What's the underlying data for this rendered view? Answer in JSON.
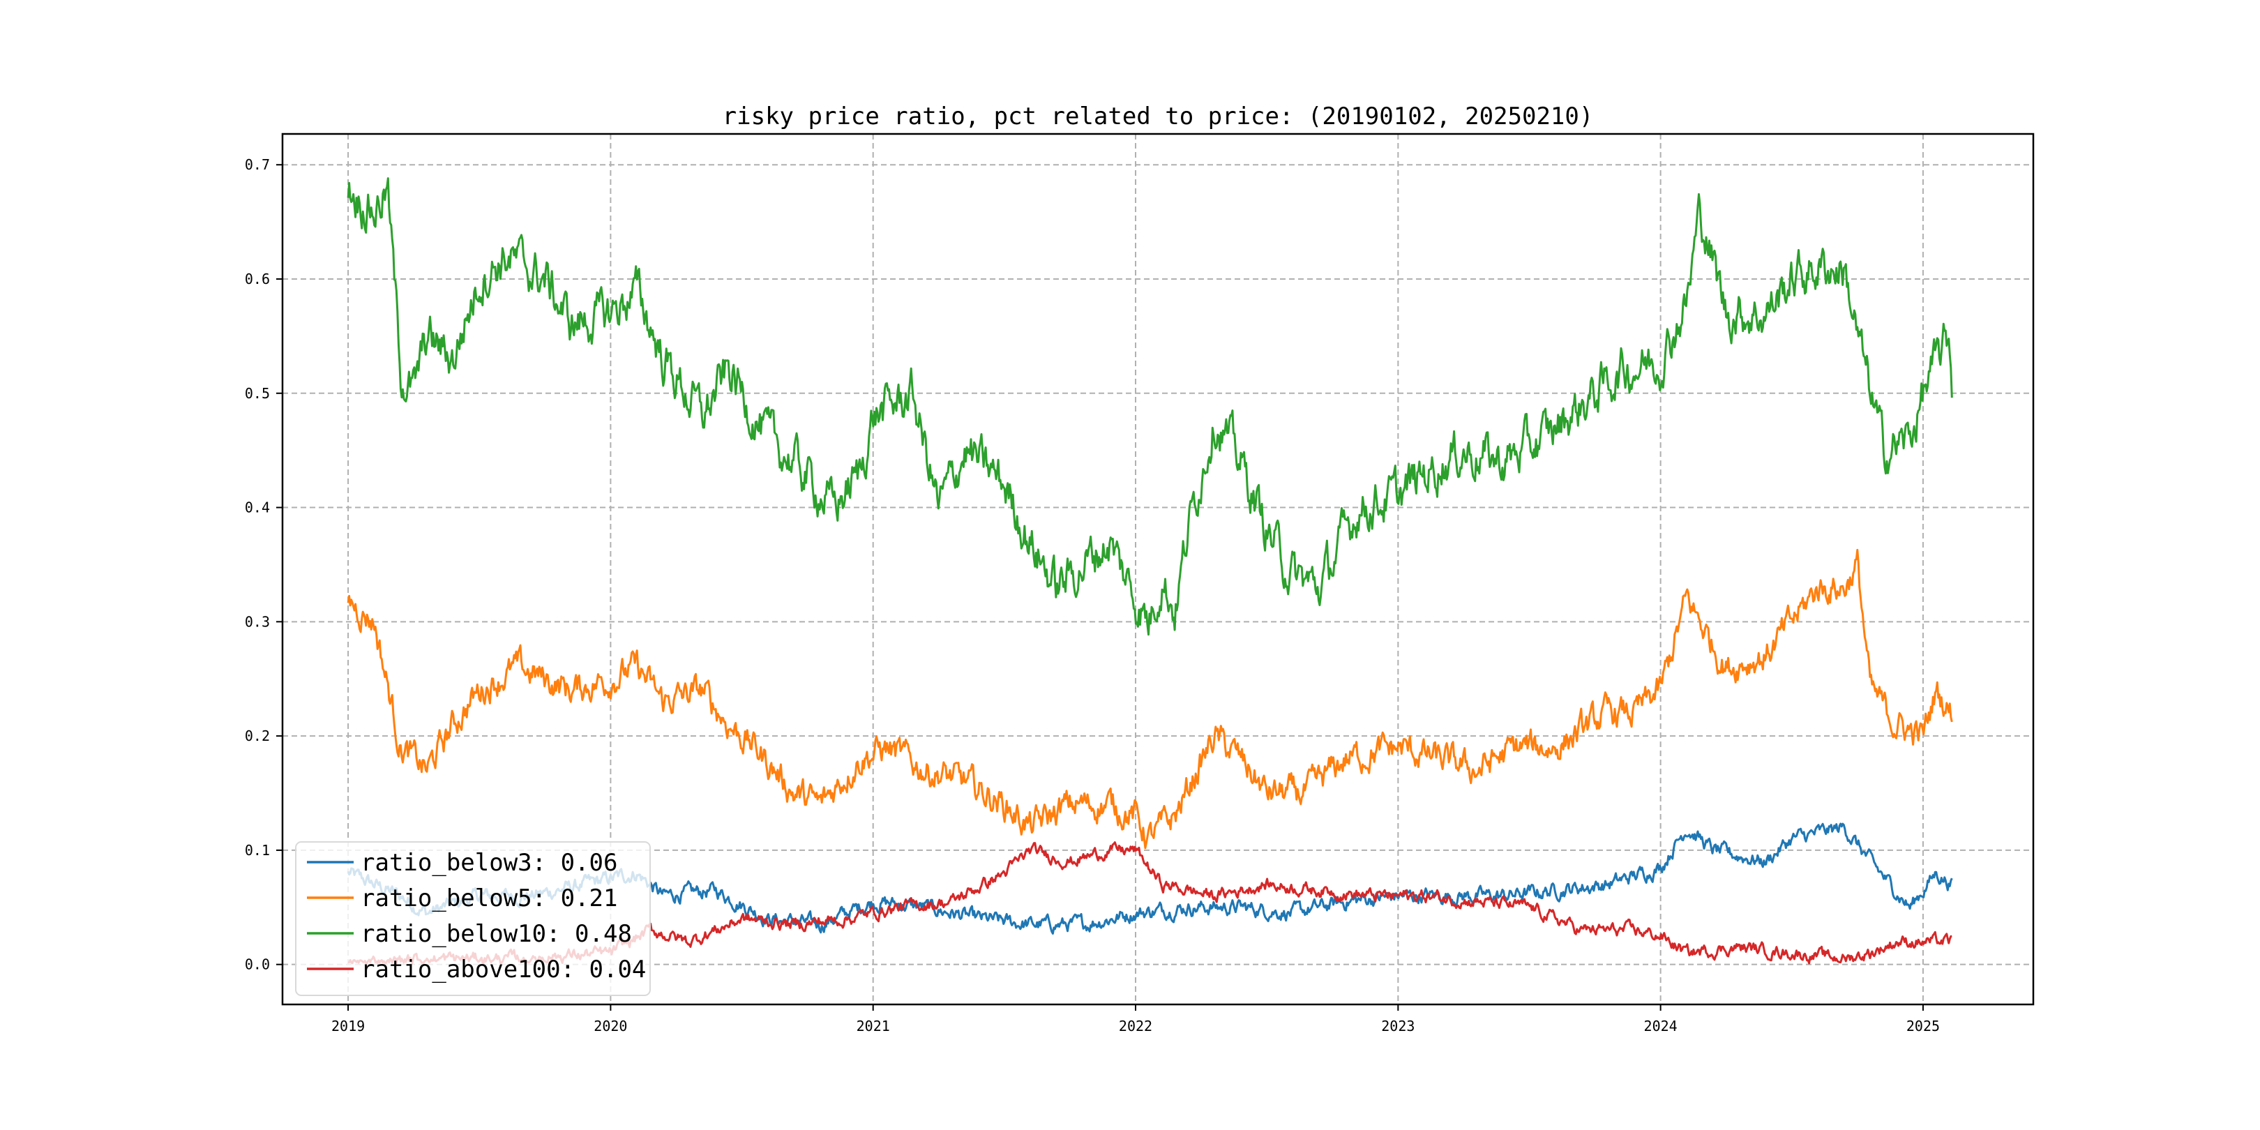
{
  "chart_data": {
    "type": "line",
    "title": "risky price ratio, pct related to price: (20190102, 20250210)",
    "xlabel": "",
    "ylabel": "",
    "xlim": [
      2018.75,
      2025.42
    ],
    "ylim": [
      -0.035,
      0.727
    ],
    "x_ticks": [
      2019,
      2020,
      2021,
      2022,
      2023,
      2024,
      2025
    ],
    "x_tick_labels": [
      "2019",
      "2020",
      "2021",
      "2022",
      "2023",
      "2024",
      "2025"
    ],
    "y_ticks": [
      0.0,
      0.1,
      0.2,
      0.3,
      0.4,
      0.5,
      0.6,
      0.7
    ],
    "y_tick_labels": [
      "0.0",
      "0.1",
      "0.2",
      "0.3",
      "0.4",
      "0.5",
      "0.6",
      "0.7"
    ],
    "grid": true,
    "legend_position": "lower-left",
    "series": [
      {
        "name": "ratio_below3",
        "legend": "ratio_below3: 0.06",
        "color": "#1f77b4",
        "noise": 0.006,
        "points": [
          [
            2019.0,
            0.08
          ],
          [
            2019.2,
            0.06
          ],
          [
            2019.3,
            0.045
          ],
          [
            2019.5,
            0.06
          ],
          [
            2019.7,
            0.06
          ],
          [
            2019.9,
            0.07
          ],
          [
            2020.1,
            0.08
          ],
          [
            2020.2,
            0.06
          ],
          [
            2020.4,
            0.065
          ],
          [
            2020.6,
            0.04
          ],
          [
            2020.8,
            0.035
          ],
          [
            2021.0,
            0.055
          ],
          [
            2021.2,
            0.05
          ],
          [
            2021.4,
            0.04
          ],
          [
            2021.6,
            0.035
          ],
          [
            2021.8,
            0.035
          ],
          [
            2022.0,
            0.045
          ],
          [
            2022.2,
            0.05
          ],
          [
            2022.4,
            0.05
          ],
          [
            2022.6,
            0.045
          ],
          [
            2022.8,
            0.055
          ],
          [
            2023.0,
            0.06
          ],
          [
            2023.2,
            0.06
          ],
          [
            2023.4,
            0.06
          ],
          [
            2023.6,
            0.065
          ],
          [
            2023.8,
            0.07
          ],
          [
            2024.0,
            0.085
          ],
          [
            2024.1,
            0.12
          ],
          [
            2024.2,
            0.1
          ],
          [
            2024.4,
            0.09
          ],
          [
            2024.5,
            0.11
          ],
          [
            2024.7,
            0.12
          ],
          [
            2024.8,
            0.09
          ],
          [
            2024.95,
            0.05
          ],
          [
            2025.05,
            0.08
          ],
          [
            2025.11,
            0.07
          ]
        ]
      },
      {
        "name": "ratio_below5",
        "legend": "ratio_below5: 0.21",
        "color": "#ff7f0e",
        "noise": 0.012,
        "points": [
          [
            2019.0,
            0.32
          ],
          [
            2019.1,
            0.3
          ],
          [
            2019.2,
            0.19
          ],
          [
            2019.3,
            0.17
          ],
          [
            2019.4,
            0.21
          ],
          [
            2019.5,
            0.24
          ],
          [
            2019.65,
            0.26
          ],
          [
            2019.85,
            0.24
          ],
          [
            2020.0,
            0.25
          ],
          [
            2020.1,
            0.26
          ],
          [
            2020.2,
            0.23
          ],
          [
            2020.35,
            0.24
          ],
          [
            2020.45,
            0.21
          ],
          [
            2020.55,
            0.19
          ],
          [
            2020.7,
            0.15
          ],
          [
            2020.8,
            0.14
          ],
          [
            2020.95,
            0.18
          ],
          [
            2021.05,
            0.19
          ],
          [
            2021.2,
            0.17
          ],
          [
            2021.35,
            0.16
          ],
          [
            2021.5,
            0.14
          ],
          [
            2021.6,
            0.12
          ],
          [
            2021.75,
            0.14
          ],
          [
            2021.9,
            0.14
          ],
          [
            2022.0,
            0.13
          ],
          [
            2022.05,
            0.11
          ],
          [
            2022.15,
            0.13
          ],
          [
            2022.3,
            0.2
          ],
          [
            2022.4,
            0.18
          ],
          [
            2022.5,
            0.15
          ],
          [
            2022.65,
            0.15
          ],
          [
            2022.8,
            0.18
          ],
          [
            2023.0,
            0.19
          ],
          [
            2023.15,
            0.18
          ],
          [
            2023.3,
            0.17
          ],
          [
            2023.45,
            0.19
          ],
          [
            2023.6,
            0.19
          ],
          [
            2023.8,
            0.22
          ],
          [
            2023.9,
            0.22
          ],
          [
            2024.0,
            0.24
          ],
          [
            2024.1,
            0.32
          ],
          [
            2024.15,
            0.3
          ],
          [
            2024.25,
            0.26
          ],
          [
            2024.4,
            0.27
          ],
          [
            2024.5,
            0.3
          ],
          [
            2024.6,
            0.33
          ],
          [
            2024.7,
            0.33
          ],
          [
            2024.75,
            0.35
          ],
          [
            2024.8,
            0.24
          ],
          [
            2024.9,
            0.21
          ],
          [
            2025.0,
            0.2
          ],
          [
            2025.05,
            0.24
          ],
          [
            2025.11,
            0.22
          ]
        ]
      },
      {
        "name": "ratio_below10",
        "legend": "ratio_below10: 0.48",
        "color": "#2ca02c",
        "noise": 0.018,
        "points": [
          [
            2019.0,
            0.68
          ],
          [
            2019.1,
            0.66
          ],
          [
            2019.15,
            0.68
          ],
          [
            2019.2,
            0.52
          ],
          [
            2019.25,
            0.5
          ],
          [
            2019.3,
            0.55
          ],
          [
            2019.4,
            0.53
          ],
          [
            2019.5,
            0.6
          ],
          [
            2019.6,
            0.62
          ],
          [
            2019.75,
            0.6
          ],
          [
            2019.85,
            0.56
          ],
          [
            2020.0,
            0.57
          ],
          [
            2020.1,
            0.59
          ],
          [
            2020.2,
            0.53
          ],
          [
            2020.35,
            0.48
          ],
          [
            2020.45,
            0.52
          ],
          [
            2020.6,
            0.46
          ],
          [
            2020.7,
            0.44
          ],
          [
            2020.85,
            0.4
          ],
          [
            2020.95,
            0.43
          ],
          [
            2021.0,
            0.48
          ],
          [
            2021.15,
            0.5
          ],
          [
            2021.25,
            0.4
          ],
          [
            2021.35,
            0.45
          ],
          [
            2021.5,
            0.42
          ],
          [
            2021.6,
            0.37
          ],
          [
            2021.7,
            0.33
          ],
          [
            2021.8,
            0.35
          ],
          [
            2021.9,
            0.37
          ],
          [
            2022.0,
            0.32
          ],
          [
            2022.05,
            0.3
          ],
          [
            2022.1,
            0.34
          ],
          [
            2022.15,
            0.31
          ],
          [
            2022.2,
            0.38
          ],
          [
            2022.3,
            0.48
          ],
          [
            2022.4,
            0.44
          ],
          [
            2022.5,
            0.38
          ],
          [
            2022.6,
            0.34
          ],
          [
            2022.7,
            0.33
          ],
          [
            2022.85,
            0.4
          ],
          [
            2023.0,
            0.41
          ],
          [
            2023.1,
            0.43
          ],
          [
            2023.25,
            0.45
          ],
          [
            2023.4,
            0.44
          ],
          [
            2023.55,
            0.46
          ],
          [
            2023.7,
            0.49
          ],
          [
            2023.85,
            0.52
          ],
          [
            2024.0,
            0.53
          ],
          [
            2024.1,
            0.58
          ],
          [
            2024.15,
            0.66
          ],
          [
            2024.25,
            0.57
          ],
          [
            2024.4,
            0.57
          ],
          [
            2024.5,
            0.6
          ],
          [
            2024.6,
            0.61
          ],
          [
            2024.7,
            0.61
          ],
          [
            2024.75,
            0.55
          ],
          [
            2024.85,
            0.45
          ],
          [
            2024.95,
            0.46
          ],
          [
            2025.0,
            0.5
          ],
          [
            2025.1,
            0.55
          ],
          [
            2025.11,
            0.51
          ]
        ]
      },
      {
        "name": "ratio_above100",
        "legend": "ratio_above100: 0.04",
        "color": "#d62728",
        "noise": 0.005,
        "points": [
          [
            2019.0,
            0.0
          ],
          [
            2019.3,
            0.005
          ],
          [
            2019.6,
            0.005
          ],
          [
            2020.0,
            0.01
          ],
          [
            2020.15,
            0.03
          ],
          [
            2020.3,
            0.02
          ],
          [
            2020.5,
            0.04
          ],
          [
            2020.7,
            0.035
          ],
          [
            2020.9,
            0.04
          ],
          [
            2021.1,
            0.05
          ],
          [
            2021.3,
            0.055
          ],
          [
            2021.5,
            0.08
          ],
          [
            2021.6,
            0.1
          ],
          [
            2021.75,
            0.09
          ],
          [
            2021.9,
            0.1
          ],
          [
            2022.0,
            0.1
          ],
          [
            2022.1,
            0.07
          ],
          [
            2022.3,
            0.06
          ],
          [
            2022.5,
            0.07
          ],
          [
            2022.7,
            0.065
          ],
          [
            2022.9,
            0.06
          ],
          [
            2023.1,
            0.06
          ],
          [
            2023.3,
            0.055
          ],
          [
            2023.5,
            0.05
          ],
          [
            2023.7,
            0.03
          ],
          [
            2023.9,
            0.03
          ],
          [
            2024.0,
            0.025
          ],
          [
            2024.1,
            0.01
          ],
          [
            2024.3,
            0.015
          ],
          [
            2024.5,
            0.01
          ],
          [
            2024.7,
            0.005
          ],
          [
            2024.8,
            0.01
          ],
          [
            2024.9,
            0.02
          ],
          [
            2025.0,
            0.02
          ],
          [
            2025.11,
            0.02
          ]
        ]
      }
    ]
  }
}
